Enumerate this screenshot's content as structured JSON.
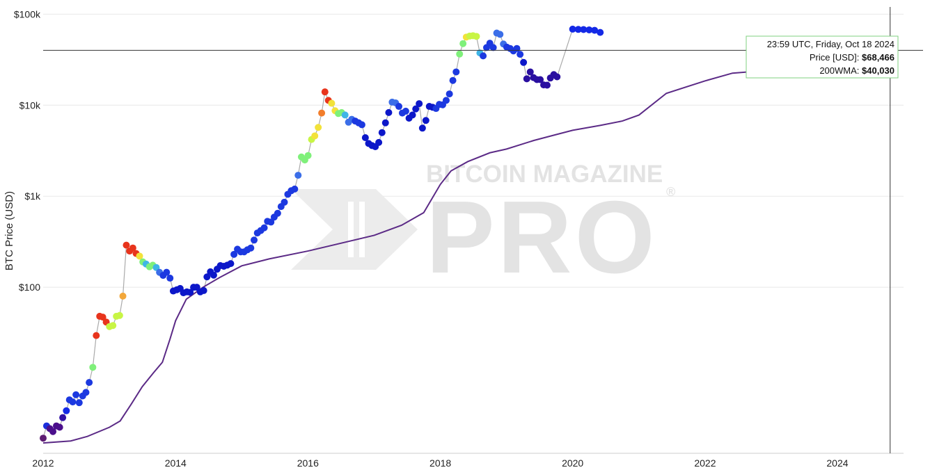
{
  "chart_data": {
    "type": "scatter",
    "ylabel": "BTC Price (USD)",
    "y_scale": "log",
    "ylim": [
      1.5,
      120000
    ],
    "xlim": [
      "2012-01-01",
      "2024-12-31"
    ],
    "x_ticks": [
      "2012",
      "2014",
      "2016",
      "2018",
      "2020",
      "2022",
      "2024"
    ],
    "y_ticks": [
      {
        "value": 100,
        "label": "$100"
      },
      {
        "value": 1000,
        "label": "$1k"
      },
      {
        "value": 10000,
        "label": "$10k"
      },
      {
        "value": 100000,
        "label": "$100k"
      }
    ],
    "grid": true,
    "watermark": {
      "line1": "BITCOIN MAGAZINE",
      "line2": "PRO",
      "mark": "®"
    },
    "tooltip": {
      "date": "23:59 UTC, Friday, Oct 18 2024",
      "price_label": "Price [USD]: ",
      "price_value": "$68,466",
      "wma_label": "200WMA: ",
      "wma_value": "$40,030"
    },
    "crosshair": {
      "date": "2024-10-18",
      "price": 40030
    },
    "colors": {
      "price_line": "#aaaaaa",
      "wma_line": "#5b2a86",
      "crosshair": "#333333",
      "tooltip_border": "#7fd17f",
      "grid": "#e8e8e8"
    },
    "series": [
      {
        "type": "line",
        "points": [
          [
            "2012-01-01",
            1.95
          ],
          [
            "2012-06-01",
            2.05
          ],
          [
            "2012-09-01",
            2.3
          ],
          [
            "2013-01-01",
            2.9
          ],
          [
            "2013-03-01",
            3.4
          ],
          [
            "2013-05-01",
            5.2
          ],
          [
            "2013-07-01",
            8.1
          ],
          [
            "2013-09-01",
            11.5
          ],
          [
            "2013-10-20",
            15
          ],
          [
            "2013-12-01",
            27
          ],
          [
            "2014-01-01",
            43
          ],
          [
            "2014-03-01",
            74
          ],
          [
            "2014-06-01",
            100
          ],
          [
            "2014-09-01",
            128
          ],
          [
            "2015-01-01",
            172
          ],
          [
            "2015-06-01",
            205
          ],
          [
            "2016-01-01",
            250
          ],
          [
            "2016-06-01",
            295
          ],
          [
            "2017-01-01",
            372
          ],
          [
            "2017-06-01",
            480
          ],
          [
            "2017-10-01",
            660
          ],
          [
            "2018-01-01",
            1350
          ],
          [
            "2018-03-01",
            1900
          ],
          [
            "2018-06-01",
            2400
          ],
          [
            "2018-10-01",
            3000
          ],
          [
            "2019-01-01",
            3300
          ],
          [
            "2019-06-01",
            4100
          ],
          [
            "2019-10-01",
            4750
          ],
          [
            "2020-01-01",
            5300
          ],
          [
            "2020-06-01",
            6000
          ],
          [
            "2020-10-01",
            6700
          ],
          [
            "2021-01-01",
            7800
          ],
          [
            "2021-06-01",
            13500
          ],
          [
            "2022-01-01",
            18500
          ],
          [
            "2022-06-01",
            22500
          ],
          [
            "2023-01-01",
            24300
          ]
        ]
      },
      {
        "type": "scatter",
        "points": [
          [
            "2012-01-01",
            2.2,
            "#5e1d73"
          ],
          [
            "2012-01-20",
            3.0,
            "#1c2fdb"
          ],
          [
            "2012-02-07",
            2.8,
            "#4b0f8c"
          ],
          [
            "2012-02-24",
            2.6,
            "#4b0f8c"
          ],
          [
            "2012-03-14",
            3.0,
            "#4b0f8c"
          ],
          [
            "2012-04-01",
            2.9,
            "#4b0f8c"
          ],
          [
            "2012-04-18",
            3.7,
            "#3010a6"
          ],
          [
            "2012-05-08",
            4.4,
            "#1429e6"
          ],
          [
            "2012-05-25",
            5.8,
            "#1c39e0"
          ],
          [
            "2012-06-12",
            5.5,
            "#1c39e0"
          ],
          [
            "2012-06-30",
            6.6,
            "#1c39e0"
          ],
          [
            "2012-07-18",
            5.4,
            "#1c39e0"
          ],
          [
            "2012-08-06",
            6.4,
            "#1c39e0"
          ],
          [
            "2012-08-24",
            7.0,
            "#1c39e0"
          ],
          [
            "2012-09-11",
            9.0,
            "#1c39e0"
          ],
          [
            "2012-10-01",
            13.2,
            "#7ff07a"
          ],
          [
            "2012-10-20",
            29.5,
            "#e8341c"
          ],
          [
            "2012-11-08",
            48.0,
            "#e8341c"
          ],
          [
            "2012-11-25",
            47.0,
            "#e8341c"
          ],
          [
            "2012-12-14",
            41.5,
            "#e8341c"
          ],
          [
            "2013-01-01",
            37.0,
            "#c8f545"
          ],
          [
            "2013-01-20",
            38.0,
            "#c8f545"
          ],
          [
            "2013-02-08",
            48.0,
            "#c8f545"
          ],
          [
            "2013-02-26",
            49.0,
            "#c8f545"
          ],
          [
            "2013-03-16",
            80.0,
            "#f2a73a"
          ],
          [
            "2013-04-04",
            290.0,
            "#e8341c"
          ],
          [
            "2013-04-22",
            250.0,
            "#e8341c"
          ],
          [
            "2013-05-10",
            270.0,
            "#e8341c"
          ],
          [
            "2013-05-28",
            235.0,
            "#e8341c"
          ],
          [
            "2013-06-16",
            220.0,
            "#f2e23a"
          ],
          [
            "2013-07-04",
            190.0,
            "#7ff07a"
          ],
          [
            "2013-07-22",
            180.0,
            "#3fb5e6"
          ],
          [
            "2013-08-10",
            168.0,
            "#7ff07a"
          ],
          [
            "2013-08-28",
            175.0,
            "#7ff07a"
          ],
          [
            "2013-09-16",
            165.0,
            "#3fb5e6"
          ],
          [
            "2013-10-04",
            146.0,
            "#3b6ee8"
          ],
          [
            "2013-10-24",
            135.0,
            "#1c39e0"
          ],
          [
            "2013-11-12",
            146.0,
            "#1c39e0"
          ],
          [
            "2013-12-01",
            126.0,
            "#1c39e0"
          ],
          [
            "2013-12-19",
            91.0,
            "#0c17c9"
          ],
          [
            "2014-01-08",
            94.0,
            "#0c17c9"
          ],
          [
            "2014-01-26",
            97.0,
            "#0c17c9"
          ],
          [
            "2014-02-13",
            87.0,
            "#0c17c9"
          ],
          [
            "2014-03-04",
            89.0,
            "#0c17c9"
          ],
          [
            "2014-03-22",
            88.0,
            "#0c17c9"
          ],
          [
            "2014-04-10",
            100.0,
            "#0c17c9"
          ],
          [
            "2014-04-28",
            100.0,
            "#0c17c9"
          ],
          [
            "2014-05-17",
            89.0,
            "#0c17c9"
          ],
          [
            "2014-06-05",
            92.0,
            "#0c17c9"
          ],
          [
            "2014-06-23",
            130.0,
            "#0c17c9"
          ],
          [
            "2014-07-12",
            148.0,
            "#0c17c9"
          ],
          [
            "2014-07-30",
            136.0,
            "#0c17c9"
          ],
          [
            "2014-08-18",
            158.0,
            "#0c17c9"
          ],
          [
            "2014-09-05",
            173.0,
            "#0c17c9"
          ],
          [
            "2014-09-24",
            170.0,
            "#0c17c9"
          ],
          [
            "2014-10-13",
            175.0,
            "#0c17c9"
          ],
          [
            "2014-11-01",
            182.0,
            "#0c17c9"
          ],
          [
            "2014-11-19",
            230.0,
            "#1c39e0"
          ],
          [
            "2014-12-08",
            262.0,
            "#1c39e0"
          ],
          [
            "2014-12-26",
            245.0,
            "#1c39e0"
          ],
          [
            "2015-01-14",
            245.0,
            "#1c39e0"
          ],
          [
            "2015-02-01",
            258.0,
            "#1c39e0"
          ],
          [
            "2015-02-20",
            270.0,
            "#1c39e0"
          ],
          [
            "2015-03-10",
            330.0,
            "#1c39e0"
          ],
          [
            "2015-03-28",
            395.0,
            "#1c39e0"
          ],
          [
            "2015-04-16",
            420.0,
            "#1c39e0"
          ],
          [
            "2015-05-05",
            450.0,
            "#1c39e0"
          ],
          [
            "2015-05-23",
            530.0,
            "#1c39e0"
          ],
          [
            "2015-06-11",
            520.0,
            "#1c39e0"
          ],
          [
            "2015-06-29",
            590.0,
            "#1c39e0"
          ],
          [
            "2015-07-18",
            650.0,
            "#1c39e0"
          ],
          [
            "2015-08-06",
            770.0,
            "#1c39e0"
          ],
          [
            "2015-08-24",
            860.0,
            "#1c39e0"
          ],
          [
            "2015-09-12",
            1050.0,
            "#1c39e0"
          ],
          [
            "2015-10-01",
            1150.0,
            "#1c39e0"
          ],
          [
            "2015-10-20",
            1200.0,
            "#1c39e0"
          ],
          [
            "2015-11-08",
            1700.0,
            "#3b6ee8"
          ],
          [
            "2015-11-26",
            2700.0,
            "#7ff07a"
          ],
          [
            "2015-12-15",
            2500.0,
            "#7ff07a"
          ],
          [
            "2016-01-02",
            2800.0,
            "#7ff07a"
          ],
          [
            "2016-01-21",
            4200.0,
            "#c8f545"
          ],
          [
            "2016-02-08",
            4600.0,
            "#f2e23a"
          ],
          [
            "2016-02-27",
            5700.0,
            "#f2e23a"
          ],
          [
            "2016-03-17",
            8200.0,
            "#f27d2b"
          ],
          [
            "2016-04-04",
            14000.0,
            "#e8341c"
          ],
          [
            "2016-04-23",
            11300.0,
            "#e8341c"
          ],
          [
            "2016-05-11",
            10500.0,
            "#f2e23a"
          ],
          [
            "2016-05-30",
            8700.0,
            "#f2e23a"
          ],
          [
            "2016-06-17",
            8100.0,
            "#7ff07a"
          ],
          [
            "2016-07-05",
            8300.0,
            "#7ff07a"
          ],
          [
            "2016-07-24",
            7800.0,
            "#3fb5e6"
          ],
          [
            "2016-08-12",
            6500.0,
            "#3b6ee8"
          ],
          [
            "2016-08-30",
            7000.0,
            "#3b6ee8"
          ],
          [
            "2016-09-18",
            6700.0,
            "#1c39e0"
          ],
          [
            "2016-10-07",
            6400.0,
            "#1c39e0"
          ],
          [
            "2016-10-25",
            6100.0,
            "#1c39e0"
          ],
          [
            "2016-11-13",
            4400.0,
            "#0c17c9"
          ],
          [
            "2016-12-01",
            3800.0,
            "#0c17c9"
          ],
          [
            "2016-12-20",
            3600.0,
            "#0c17c9"
          ],
          [
            "2017-01-07",
            3500.0,
            "#0c17c9"
          ],
          [
            "2017-01-26",
            3900.0,
            "#0c17c9"
          ],
          [
            "2017-02-13",
            5000.0,
            "#0c17c9"
          ],
          [
            "2017-03-04",
            6400.0,
            "#0c17c9"
          ],
          [
            "2017-03-22",
            8300.0,
            "#0c17c9"
          ],
          [
            "2017-04-10",
            10800.0,
            "#3b6ee8"
          ],
          [
            "2017-04-29",
            10600.0,
            "#3b6ee8"
          ],
          [
            "2017-05-17",
            9700.0,
            "#1c39e0"
          ],
          [
            "2017-06-05",
            8200.0,
            "#1c39e0"
          ],
          [
            "2017-06-24",
            8600.0,
            "#1c39e0"
          ],
          [
            "2017-07-12",
            7200.0,
            "#0c17c9"
          ],
          [
            "2017-07-31",
            7800.0,
            "#0c17c9"
          ],
          [
            "2017-08-18",
            9100.0,
            "#0c17c9"
          ],
          [
            "2017-09-06",
            10400.0,
            "#0c17c9"
          ],
          [
            "2017-09-24",
            5600.0,
            "#0c17c9"
          ],
          [
            "2017-10-13",
            6800.0,
            "#0c17c9"
          ],
          [
            "2017-11-01",
            9700.0,
            "#0c17c9"
          ],
          [
            "2017-11-19",
            9500.0,
            "#0c17c9"
          ],
          [
            "2017-12-08",
            9200.0,
            "#1c39e0"
          ],
          [
            "2017-12-26",
            10200.0,
            "#1c39e0"
          ],
          [
            "2018-01-14",
            10100.0,
            "#1c39e0"
          ],
          [
            "2018-02-02",
            11300.0,
            "#1c39e0"
          ],
          [
            "2018-02-20",
            13300.0,
            "#1c39e0"
          ],
          [
            "2018-03-11",
            18700.0,
            "#1c39e0"
          ],
          [
            "2018-03-29",
            23200.0,
            "#1c39e0"
          ],
          [
            "2018-04-17",
            36500.0,
            "#7ff07a"
          ],
          [
            "2018-05-06",
            47500.0,
            "#7ff07a"
          ],
          [
            "2018-05-24",
            56000.0,
            "#f2e23a"
          ],
          [
            "2018-06-12",
            57500.0,
            "#c8f545"
          ],
          [
            "2018-06-30",
            58000.0,
            "#c8f545"
          ],
          [
            "2018-07-19",
            57000.0,
            "#c8f545"
          ],
          [
            "2018-08-07",
            37500.0,
            "#3fb5e6"
          ],
          [
            "2018-08-25",
            34800.0,
            "#1c39e0"
          ],
          [
            "2018-09-13",
            43000.0,
            "#1c39e0"
          ],
          [
            "2018-10-01",
            48000.0,
            "#1c39e0"
          ],
          [
            "2018-10-20",
            43000.0,
            "#1c39e0"
          ],
          [
            "2018-11-08",
            62000.0,
            "#3b6ee8"
          ],
          [
            "2018-11-26",
            60000.0,
            "#3b6ee8"
          ],
          [
            "2018-12-15",
            47000.0,
            "#3b6ee8"
          ],
          [
            "2019-01-02",
            43500.0,
            "#1c39e0"
          ],
          [
            "2019-01-21",
            42000.0,
            "#1c39e0"
          ],
          [
            "2019-02-08",
            39500.0,
            "#1c39e0"
          ],
          [
            "2019-02-27",
            42000.0,
            "#1c39e0"
          ],
          [
            "2019-03-17",
            36200.0,
            "#1c39e0"
          ],
          [
            "2019-04-05",
            29500.0,
            "#0c17c9"
          ],
          [
            "2019-04-23",
            19500.0,
            "#2a0fa0"
          ],
          [
            "2019-05-12",
            23200.0,
            "#2a0fa0"
          ],
          [
            "2019-05-30",
            20100.0,
            "#2a0fa0"
          ],
          [
            "2019-06-18",
            19100.0,
            "#2a0fa0"
          ],
          [
            "2019-07-06",
            19100.0,
            "#2a0fa0"
          ],
          [
            "2019-07-25",
            16700.0,
            "#2a0fa0"
          ],
          [
            "2019-08-13",
            16600.0,
            "#2a0fa0"
          ],
          [
            "2019-08-31",
            19900.0,
            "#2a0fa0"
          ],
          [
            "2019-09-19",
            21700.0,
            "#2a0fa0"
          ],
          [
            "2019-10-07",
            20500.0,
            "#2a0fa0"
          ],
          [
            "2020-01-01",
            68466.0,
            "#1429e6"
          ],
          [
            "2020-02-01",
            68000.0,
            "#1429e6"
          ],
          [
            "2020-03-01",
            67800.0,
            "#1429e6"
          ],
          [
            "2020-04-01",
            67200.0,
            "#1429e6"
          ],
          [
            "2020-05-01",
            66500.0,
            "#1429e6"
          ],
          [
            "2020-06-01",
            63000.0,
            "#1429e6"
          ]
        ]
      },
      {
        "type": "line",
        "name": "200WMA",
        "points": []
      }
    ]
  }
}
